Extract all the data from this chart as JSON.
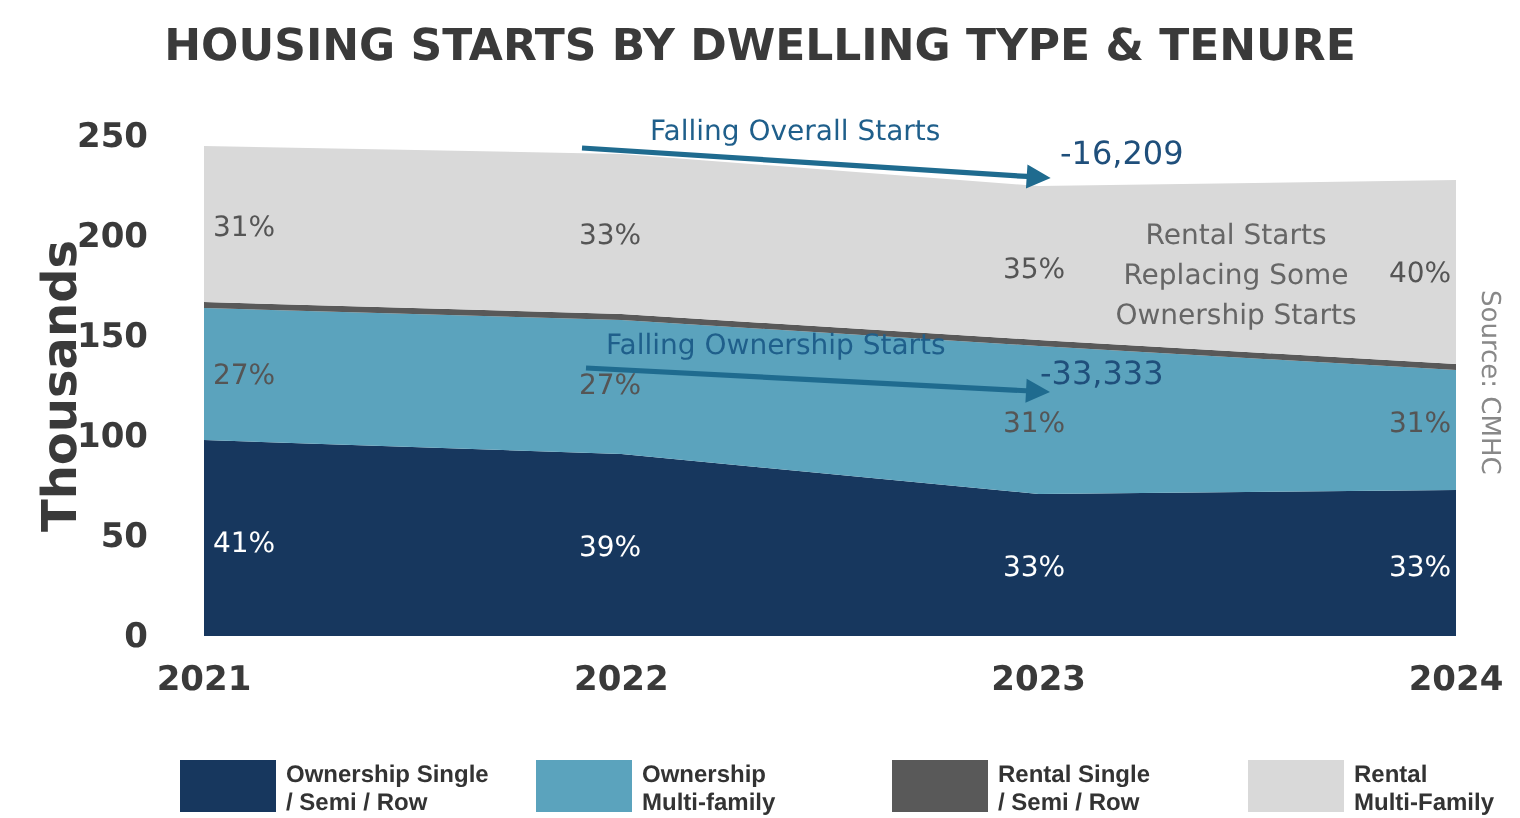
{
  "chart_data": {
    "type": "area",
    "stacked": true,
    "title": "HOUSING STARTS BY DWELLING TYPE & TENURE",
    "ylabel": "Thousands",
    "categories": [
      "2021",
      "2022",
      "2023",
      "2024"
    ],
    "series": [
      {
        "name": "Ownership Single / Semi / Row",
        "color": "#17375e",
        "values": [
          98,
          91,
          71,
          73
        ]
      },
      {
        "name": "Ownership Multi-family",
        "color": "#5ba3bd",
        "values": [
          66,
          67,
          74,
          60
        ]
      },
      {
        "name": "Rental Single / Semi / Row",
        "color": "#595959",
        "values": [
          3,
          3,
          3,
          3
        ]
      },
      {
        "name": "Rental Multi-Family",
        "color": "#d9d9d9",
        "values": [
          78,
          80,
          77,
          92
        ]
      }
    ],
    "ylim": [
      0,
      250
    ],
    "yticks": [
      0,
      50,
      100,
      150,
      200,
      250
    ],
    "legend": "bottom",
    "annotations": [
      "41%",
      "39%",
      "33%",
      "33%",
      "27%",
      "27%",
      "31%",
      "31%",
      "31%",
      "33%",
      "35%",
      "40%",
      "Falling Overall Starts",
      {
        "text": "-16,209",
        "x": "2023",
        "y": 225
      },
      "Falling Ownership Starts",
      "-33,333",
      "Rental Starts Replacing Some Ownership Starts",
      "Source: CMHC"
    ]
  }
}
